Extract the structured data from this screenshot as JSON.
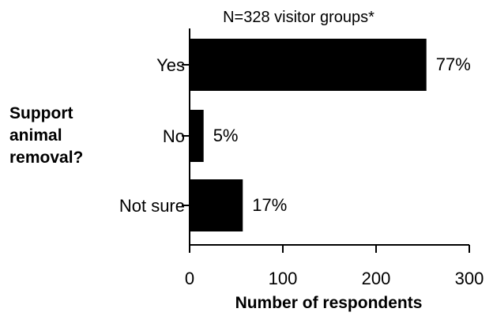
{
  "chart_data": {
    "type": "bar",
    "orientation": "horizontal",
    "title": "N=328 visitor groups*",
    "ylabel_lines": [
      "Support",
      "animal",
      "removal?"
    ],
    "xlabel": "Number of respondents",
    "categories": [
      "Yes",
      "No",
      "Not sure"
    ],
    "values": [
      254,
      15,
      57
    ],
    "data_labels": [
      "77%",
      "5%",
      "17%"
    ],
    "xlim": [
      0,
      300
    ],
    "xticks": [
      0,
      100,
      200,
      300
    ],
    "bar_color": "#000000",
    "grid": false,
    "legend": "none"
  }
}
